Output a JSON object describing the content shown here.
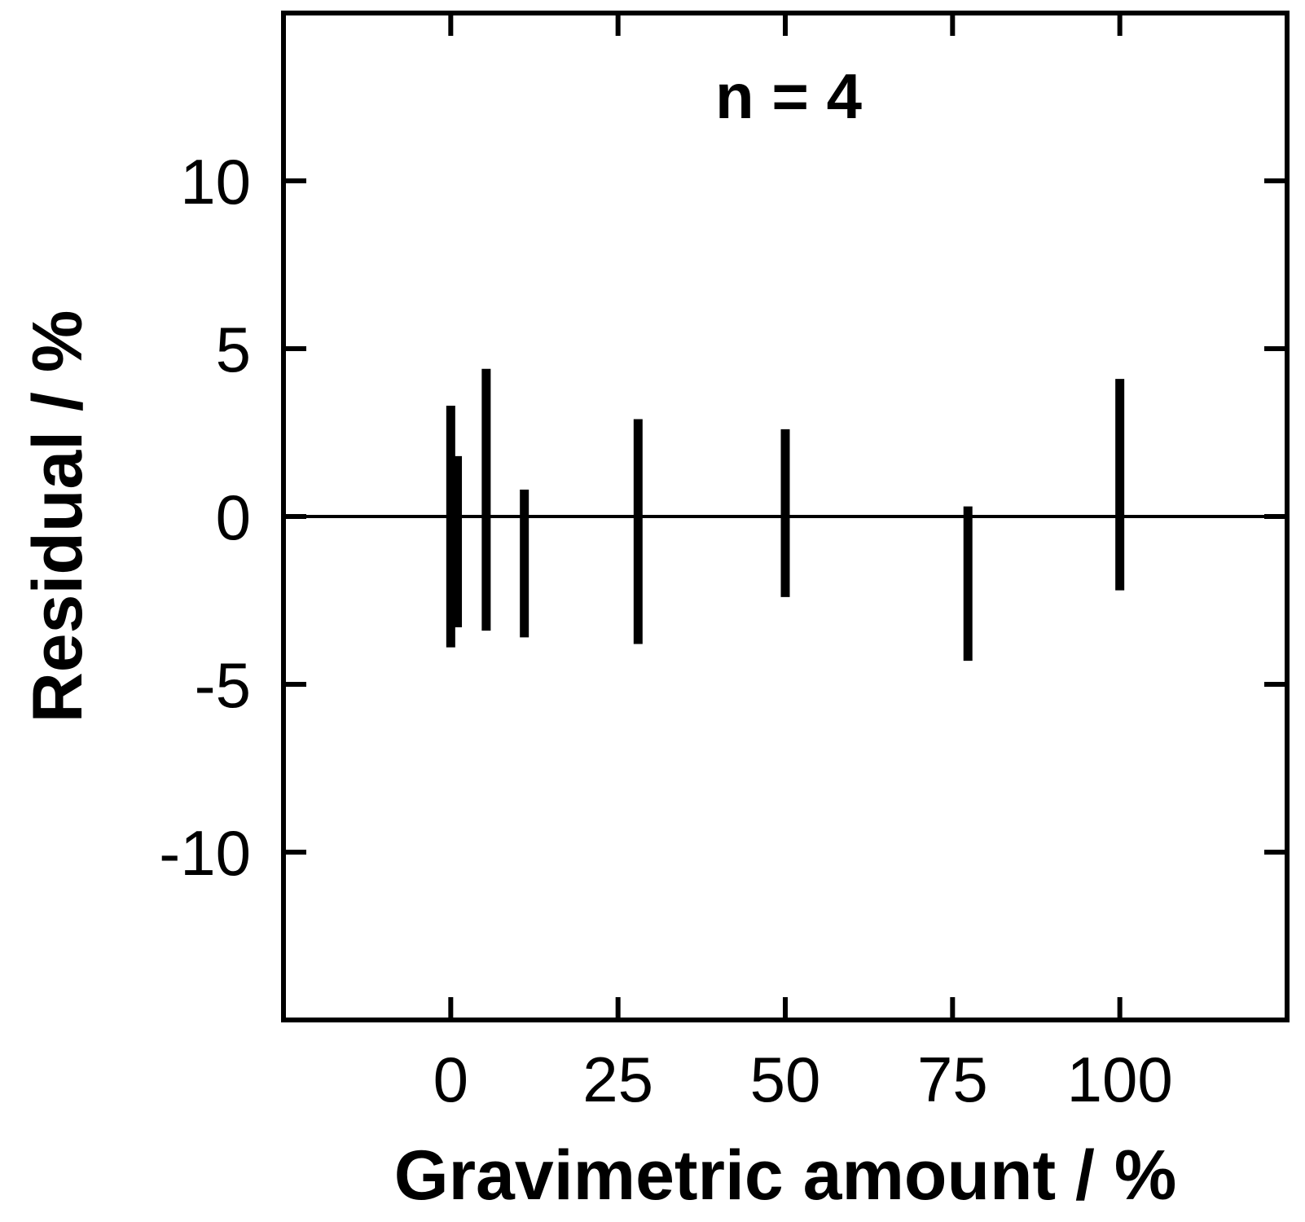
{
  "chart_data": {
    "type": "errorbar",
    "annotation": "n = 4",
    "xlabel": "Gravimetric amount / %",
    "ylabel": "Residual / %",
    "xlim": [
      -25,
      125
    ],
    "ylim": [
      -15,
      15
    ],
    "xticks": [
      0,
      25,
      50,
      75,
      100
    ],
    "xtick_labels": [
      "0",
      "25",
      "50",
      "75",
      "100"
    ],
    "yticks": [
      -10,
      -5,
      0,
      5,
      10
    ],
    "ytick_labels": [
      "-10",
      "-5",
      "0",
      "5",
      "10"
    ],
    "reference_line_y": 0,
    "grid": false,
    "points": [
      {
        "x": 0.0,
        "low": -3.9,
        "high": 3.3
      },
      {
        "x": 1.0,
        "low": -3.3,
        "high": 1.8
      },
      {
        "x": 5.3,
        "low": -3.4,
        "high": 4.4
      },
      {
        "x": 11.0,
        "low": -3.6,
        "high": 0.8
      },
      {
        "x": 28.0,
        "low": -3.8,
        "high": 2.9
      },
      {
        "x": 50.0,
        "low": -2.4,
        "high": 2.6
      },
      {
        "x": 77.3,
        "low": -4.3,
        "high": 0.3
      },
      {
        "x": 100.0,
        "low": -2.2,
        "high": 4.1
      }
    ]
  }
}
